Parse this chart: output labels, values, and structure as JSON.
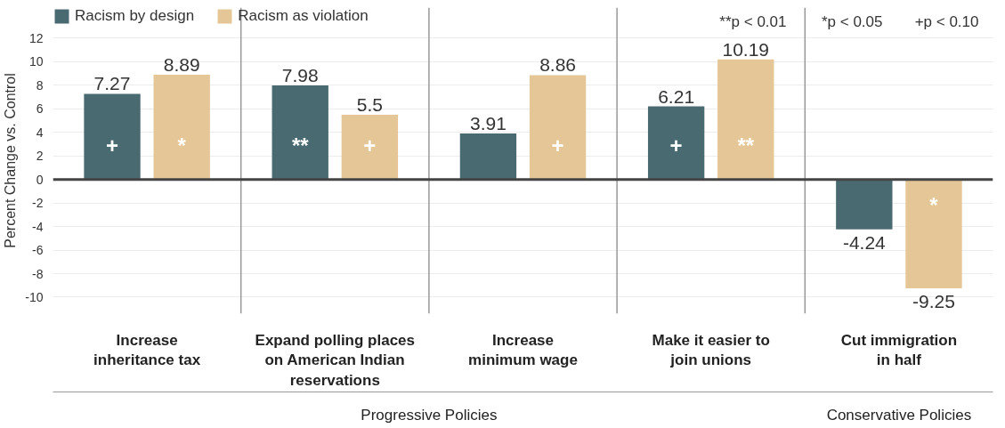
{
  "chart_data": {
    "type": "bar",
    "categories": [
      "Increase\ninheritance tax",
      "Expand polling places\non American Indian\nreservations",
      "Increase\nminimum wage",
      "Make it easier to\njoin unions",
      "Cut immigration\nin half"
    ],
    "series": [
      {
        "name": "Racism by design",
        "color": "#4a6a72",
        "values": [
          7.27,
          7.98,
          3.91,
          6.21,
          -4.24
        ]
      },
      {
        "name": "Racism as violation",
        "color": "#e5c696",
        "values": [
          8.89,
          5.5,
          8.86,
          10.19,
          -9.25
        ]
      }
    ],
    "ylabel": "Percent Change vs. Control",
    "ylim": [
      -11.4,
      14.6
    ],
    "yticks": [
      -10,
      -8,
      -6,
      -4,
      -2,
      0,
      2,
      4,
      6,
      8,
      10,
      12
    ],
    "grid": "y",
    "legend": "top left",
    "data_labels": true,
    "annotations": [
      "+",
      "*",
      "**",
      "+",
      "+",
      "+",
      "**",
      "*",
      "**p < 0.01",
      "*p < 0.05",
      "+p < 0.10",
      "Progressive Policies",
      "Conservative Policies"
    ]
  }
}
